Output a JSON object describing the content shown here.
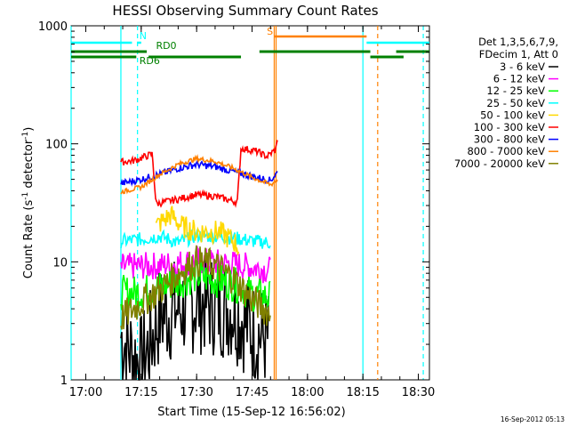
{
  "chart_data": {
    "type": "line",
    "title": "HESSI Observing Summary Count Rates",
    "xlabel": "Start Time (15-Sep-12 16:56:02)",
    "ylabel": "Count Rate (s⁻¹ detector⁻¹)",
    "ylabel_parts": {
      "base": "Count Rate (s",
      "exp1": "-1",
      "mid": " detector",
      "exp2": "-1",
      "end": ")"
    },
    "y_scale": "log",
    "ylim": [
      1,
      1000
    ],
    "xlim": [
      "16:56:02",
      "18:33:00"
    ],
    "x_ticks": [
      "17:00",
      "17:15",
      "17:30",
      "17:45",
      "18:00",
      "18:15",
      "18:30"
    ],
    "y_ticks": [
      "1",
      "10",
      "100",
      "1000"
    ],
    "timestamp": "16-Sep-2012 05:13",
    "legend_header": [
      "Det 1,3,5,6,7,9,",
      "FDecim 1, Att 0"
    ],
    "series": [
      {
        "name": "3 - 6 keV",
        "color": "#000000",
        "points": [
          [
            "17:09:30",
            2.3
          ],
          [
            "17:15:00",
            1.3
          ],
          [
            "17:20:00",
            3.5
          ],
          [
            "17:30:00",
            4.6
          ],
          [
            "17:40:00",
            4.0
          ],
          [
            "17:45:00",
            2.6
          ],
          [
            "17:49:30",
            2.2
          ]
        ]
      },
      {
        "name": "6 - 12 keV",
        "color": "#ff00ff",
        "points": [
          [
            "17:09:30",
            9.0
          ],
          [
            "17:15:00",
            9.2
          ],
          [
            "17:20:00",
            9.3
          ],
          [
            "17:30:00",
            10.2
          ],
          [
            "17:40:00",
            9.6
          ],
          [
            "17:45:00",
            9.0
          ],
          [
            "17:50:00",
            8.5
          ]
        ]
      },
      {
        "name": "12 - 25 keV",
        "color": "#00ff00",
        "points": [
          [
            "17:09:30",
            5.5
          ],
          [
            "17:15:00",
            5.5
          ],
          [
            "17:25:00",
            6.8
          ],
          [
            "17:30:00",
            7.6
          ],
          [
            "17:40:00",
            6.5
          ],
          [
            "17:45:00",
            5.3
          ],
          [
            "17:50:00",
            5.0
          ]
        ]
      },
      {
        "name": "25 - 50 keV",
        "color": "#00ffff",
        "points": [
          [
            "17:09:30",
            15.0
          ],
          [
            "17:15:00",
            15.5
          ],
          [
            "17:20:00",
            16.5
          ],
          [
            "17:25:00",
            14.5
          ],
          [
            "17:30:00",
            16.8
          ],
          [
            "17:40:00",
            16.0
          ],
          [
            "17:45:00",
            15.0
          ],
          [
            "17:50:00",
            14.5
          ]
        ]
      },
      {
        "name": "50 - 100 keV",
        "color": "#ffd800",
        "points": [
          [
            "17:19:00",
            20.0
          ],
          [
            "17:23:00",
            25.0
          ],
          [
            "17:26:00",
            20.0
          ],
          [
            "17:30:00",
            18.0
          ],
          [
            "17:36:00",
            18.0
          ],
          [
            "17:40:00",
            15.0
          ],
          [
            "17:41:30",
            13.0
          ]
        ]
      },
      {
        "name": "100 - 300 keV",
        "color": "#ff0000",
        "points": [
          [
            "17:09:30",
            70.0
          ],
          [
            "17:13:00",
            72.0
          ],
          [
            "17:18:00",
            82.0
          ],
          [
            "17:19:00",
            31.0
          ],
          [
            "17:25:00",
            34.0
          ],
          [
            "17:30:00",
            37.0
          ],
          [
            "17:35:00",
            36.0
          ],
          [
            "17:41:00",
            32.0
          ],
          [
            "17:42:00",
            92.0
          ],
          [
            "17:46:00",
            87.0
          ],
          [
            "17:49:00",
            78.0
          ],
          [
            "17:51:30",
            90.0
          ],
          [
            "17:52:00",
            125.0
          ]
        ]
      },
      {
        "name": "300 - 800 keV",
        "color": "#0000ff",
        "points": [
          [
            "17:09:30",
            46.0
          ],
          [
            "17:15:00",
            50.0
          ],
          [
            "17:20:00",
            55.0
          ],
          [
            "17:25:00",
            62.0
          ],
          [
            "17:30:00",
            67.0
          ],
          [
            "17:35:00",
            64.0
          ],
          [
            "17:40:00",
            58.0
          ],
          [
            "17:45:00",
            53.0
          ],
          [
            "17:50:00",
            49.0
          ],
          [
            "17:52:00",
            58.0
          ]
        ]
      },
      {
        "name": "800 - 7000 keV",
        "color": "#ff8000",
        "points": [
          [
            "17:09:30",
            39.0
          ],
          [
            "17:15:00",
            43.0
          ],
          [
            "17:20:00",
            55.0
          ],
          [
            "17:25:00",
            67.0
          ],
          [
            "17:30:00",
            75.0
          ],
          [
            "17:35:00",
            71.0
          ],
          [
            "17:40:00",
            62.0
          ],
          [
            "17:45:00",
            52.0
          ],
          [
            "17:50:00",
            45.0
          ],
          [
            "17:52:00",
            50.0
          ]
        ]
      },
      {
        "name": "7000 - 20000 keV",
        "color": "#808000",
        "points": [
          [
            "17:09:30",
            3.3
          ],
          [
            "17:15:00",
            4.5
          ],
          [
            "17:20:00",
            5.8
          ],
          [
            "17:25:00",
            8.0
          ],
          [
            "17:30:00",
            10.2
          ],
          [
            "17:35:00",
            9.3
          ],
          [
            "17:40:00",
            7.2
          ],
          [
            "17:45:00",
            4.8
          ],
          [
            "17:50:00",
            3.6
          ]
        ]
      }
    ],
    "annotations": {
      "flag_bars": [
        {
          "label": "N",
          "color": "#00ffff",
          "segments": [
            [
              "16:56:02",
              "17:12:30"
            ],
            [
              "17:13:50",
              "17:15:00"
            ],
            [
              "18:16:00",
              "18:33:00"
            ]
          ]
        },
        {
          "label": "S",
          "color": "#ff8000",
          "segments": [
            [
              "17:51:00",
              "18:16:00"
            ]
          ]
        },
        {
          "label": "RD0",
          "color": "#008000",
          "segments": [
            [
              "16:56:02",
              "17:16:30"
            ],
            [
              "17:47:00",
              "18:17:00"
            ],
            [
              "18:24:00",
              "18:33:00"
            ]
          ]
        },
        {
          "label": "RD6",
          "color": "#008000",
          "segments": [
            [
              "16:56:02",
              "17:13:40"
            ],
            [
              "17:17:00",
              "17:42:00"
            ],
            [
              "18:17:00",
              "18:26:00"
            ]
          ]
        }
      ],
      "vertical_lines": [
        {
          "t": "16:56:02",
          "color": "#00ffff",
          "dashed": false
        },
        {
          "t": "17:09:30",
          "color": "#00ffff",
          "dashed": false
        },
        {
          "t": "17:14:00",
          "color": "#00ffff",
          "dashed": true
        },
        {
          "t": "17:51:00",
          "color": "#ff8000",
          "dashed": false
        },
        {
          "t": "17:51:30",
          "color": "#ff8000",
          "dashed": false
        },
        {
          "t": "18:15:00",
          "color": "#00ffff",
          "dashed": false
        },
        {
          "t": "18:19:00",
          "color": "#ff8000",
          "dashed": true
        },
        {
          "t": "18:31:20",
          "color": "#00ffff",
          "dashed": true
        }
      ]
    }
  }
}
